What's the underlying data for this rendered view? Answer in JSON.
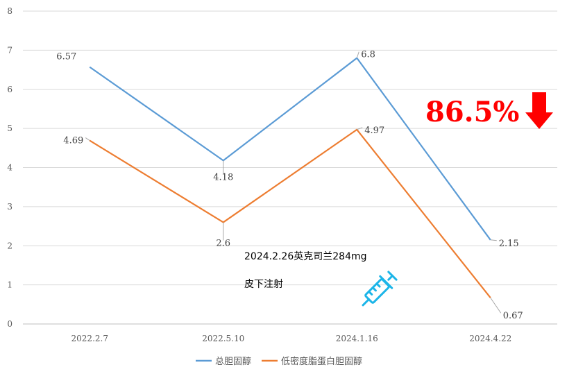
{
  "chart_data": {
    "type": "line",
    "categories": [
      "2022.2.7",
      "2022.5.10",
      "2024.1.16",
      "2024.4.22"
    ],
    "ylim": [
      0,
      8
    ],
    "yticks": [
      0,
      1,
      2,
      3,
      4,
      5,
      6,
      7,
      8
    ],
    "grid": true,
    "legend_position": "bottom",
    "series": [
      {
        "name": "总胆固醇",
        "color": "#5b9bd5",
        "values": [
          6.57,
          4.18,
          6.8,
          2.15
        ],
        "labels": [
          "6.57",
          "4.18",
          "6.8",
          "2.15"
        ]
      },
      {
        "name": "低密度脂蛋白胆固醇",
        "color": "#ed7d31",
        "values": [
          4.69,
          2.6,
          4.97,
          0.67
        ],
        "labels": [
          "4.69",
          "2.6",
          "4.97",
          "0.67"
        ]
      }
    ]
  },
  "annotations": {
    "reduction": "86.5%",
    "arrow_icon": "red-down-arrow",
    "arrow_color": "#ff0000",
    "injection_line1": "2024.2.26英克司兰284mg",
    "injection_line2": "皮下注射",
    "syringe_icon": "syringe",
    "syringe_color": "#1cb5e8"
  }
}
